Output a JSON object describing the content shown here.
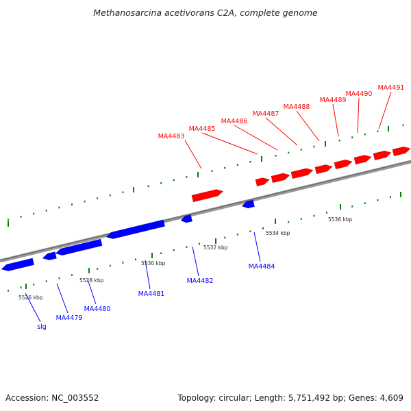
{
  "title": "Methanosarcina acetivorans C2A, complete genome",
  "footer": {
    "accession": "Accession: NC_003552",
    "topology": "Topology: circular; Length: 5,751,492 bp; Genes: 4,609"
  },
  "colors": {
    "forward": "#ff0000",
    "reverse": "#0000ff",
    "backbone": "#7a7a7a",
    "ticks": "#008000",
    "label_text": "#222222"
  },
  "scale": {
    "labels": [
      {
        "text": "5526 kbp",
        "kbp": 5526
      },
      {
        "text": "5528 kbp",
        "kbp": 5528
      },
      {
        "text": "5530 kbp",
        "kbp": 5530
      },
      {
        "text": "5532 kbp",
        "kbp": 5532
      },
      {
        "text": "5534 kbp",
        "kbp": 5534
      },
      {
        "text": "5536 kbp",
        "kbp": 5536
      }
    ]
  },
  "genes": {
    "forward": [
      {
        "name": "MA4483"
      },
      {
        "name": "MA4485"
      },
      {
        "name": "MA4486"
      },
      {
        "name": "MA4487"
      },
      {
        "name": "MA4488"
      },
      {
        "name": "MA4489"
      },
      {
        "name": "MA4490"
      },
      {
        "name": "MA4491"
      }
    ],
    "reverse": [
      {
        "name": "slg"
      },
      {
        "name": "MA4479"
      },
      {
        "name": "MA4480"
      },
      {
        "name": "MA4481"
      },
      {
        "name": "MA4482"
      },
      {
        "name": "MA4484"
      }
    ]
  }
}
